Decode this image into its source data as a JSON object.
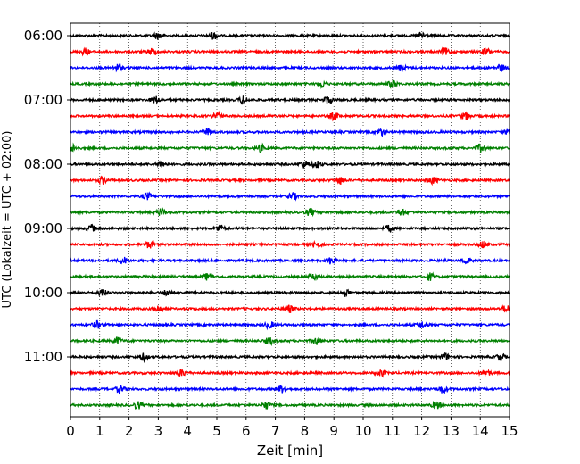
{
  "chart_data": {
    "type": "line",
    "title": "",
    "xlabel": "Zeit  [min]",
    "ylabel": "UTC (Lokalzeit = UTC + 02:00)",
    "xlim": [
      0,
      15
    ],
    "xticks": [
      0,
      1,
      2,
      3,
      4,
      5,
      6,
      7,
      8,
      9,
      10,
      11,
      12,
      13,
      14,
      15
    ],
    "y_tick_labels": [
      "06:00",
      "07:00",
      "08:00",
      "09:00",
      "10:00",
      "11:00"
    ],
    "trace_interval_minutes": 15,
    "start_time": "06:00",
    "end_time": "11:45",
    "colors": [
      "#000000",
      "#ff0000",
      "#0000ff",
      "#008000"
    ],
    "grid": "vertical dotted at each minute",
    "traces": [
      {
        "start": "06:00",
        "color": "#000000",
        "events_min": [
          3.0,
          4.9,
          12.0
        ]
      },
      {
        "start": "06:15",
        "color": "#ff0000",
        "events_min": [
          0.5,
          2.8,
          12.8,
          14.2
        ]
      },
      {
        "start": "06:30",
        "color": "#0000ff",
        "events_min": [
          1.6,
          11.3,
          14.7
        ]
      },
      {
        "start": "06:45",
        "color": "#008000",
        "events_min": [
          8.6,
          11.0
        ]
      },
      {
        "start": "07:00",
        "color": "#000000",
        "events_min": [
          2.9,
          5.9,
          8.8
        ]
      },
      {
        "start": "07:15",
        "color": "#ff0000",
        "events_min": [
          5.0,
          9.0,
          13.5
        ]
      },
      {
        "start": "07:30",
        "color": "#0000ff",
        "events_min": [
          4.7,
          10.6,
          15.0
        ]
      },
      {
        "start": "07:45",
        "color": "#008000",
        "events_min": [
          0.1,
          6.5,
          14.0
        ]
      },
      {
        "start": "08:00",
        "color": "#000000",
        "events_min": [
          3.1,
          8.0,
          8.4
        ]
      },
      {
        "start": "08:15",
        "color": "#ff0000",
        "events_min": [
          1.1,
          9.2,
          12.4
        ]
      },
      {
        "start": "08:30",
        "color": "#0000ff",
        "events_min": [
          2.6,
          7.6
        ]
      },
      {
        "start": "08:45",
        "color": "#008000",
        "events_min": [
          3.1,
          8.2,
          11.3
        ]
      },
      {
        "start": "09:00",
        "color": "#000000",
        "events_min": [
          0.7,
          5.1,
          10.9
        ]
      },
      {
        "start": "09:15",
        "color": "#ff0000",
        "events_min": [
          2.7,
          8.4,
          14.1
        ]
      },
      {
        "start": "09:30",
        "color": "#0000ff",
        "events_min": [
          1.8,
          8.9,
          13.5
        ]
      },
      {
        "start": "09:45",
        "color": "#008000",
        "events_min": [
          4.7,
          8.3,
          12.3
        ]
      },
      {
        "start": "10:00",
        "color": "#000000",
        "events_min": [
          1.1,
          3.3,
          9.4
        ]
      },
      {
        "start": "10:15",
        "color": "#ff0000",
        "events_min": [
          3.0,
          7.5,
          14.9
        ]
      },
      {
        "start": "10:30",
        "color": "#0000ff",
        "events_min": [
          0.9,
          6.8,
          12.0
        ]
      },
      {
        "start": "10:45",
        "color": "#008000",
        "events_min": [
          1.6,
          6.8,
          8.4
        ]
      },
      {
        "start": "11:00",
        "color": "#000000",
        "events_min": [
          2.5,
          12.8,
          14.7
        ]
      },
      {
        "start": "11:15",
        "color": "#ff0000",
        "events_min": [
          3.8,
          10.6,
          14.2
        ]
      },
      {
        "start": "11:30",
        "color": "#0000ff",
        "events_min": [
          1.7,
          7.2,
          12.7
        ]
      },
      {
        "start": "11:45",
        "color": "#008000",
        "events_min": [
          2.3,
          6.7,
          12.5
        ]
      }
    ]
  }
}
